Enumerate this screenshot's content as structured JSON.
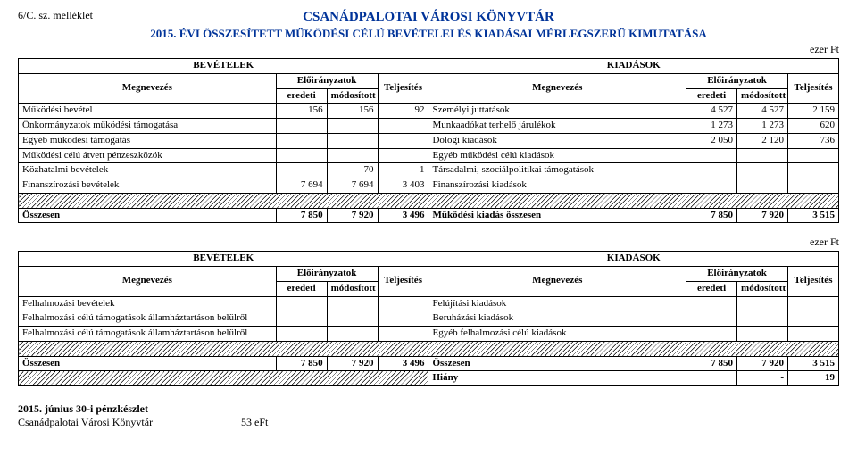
{
  "attachment_label": "6/C. sz. melléklet",
  "title_main": "CSANÁDPALOTAI VÁROSI KÖNYVTÁR",
  "title_sub": "2015. ÉVI ÖSSZESÍTETT MŰKÖDÉSI CÉLÚ BEVÉTELEI ÉS KIADÁSAI MÉRLEGSZERŰ KIMUTATÁSA",
  "unit": "ezer Ft",
  "hdr": {
    "revenues": "BEVÉTELEK",
    "expenses": "KIADÁSOK",
    "name": "Megnevezés",
    "appropriations": "Előirányzatok",
    "fulfillment": "Teljesítés",
    "original": "eredeti",
    "modified": "módosított"
  },
  "t1": {
    "rows": [
      {
        "l": "Működési bevétel",
        "a": "156",
        "b": "156",
        "c": "92",
        "r": "Személyi juttatások",
        "d": "4 527",
        "e": "4 527",
        "f": "2 159"
      },
      {
        "l": "Önkormányzatok működési támogatása",
        "a": "",
        "b": "",
        "c": "",
        "r": "Munkaadókat terhelő járulékok",
        "d": "1 273",
        "e": "1 273",
        "f": "620"
      },
      {
        "l": "Egyéb működési támogatás",
        "a": "",
        "b": "",
        "c": "",
        "r": "Dologi kiadások",
        "d": "2 050",
        "e": "2 120",
        "f": "736"
      },
      {
        "l": "Működési célú átvett pénzeszközök",
        "a": "",
        "b": "",
        "c": "",
        "r": "Egyéb működési célú kiadások",
        "d": "",
        "e": "",
        "f": ""
      },
      {
        "l": "Közhatalmi bevételek",
        "a": "",
        "b": "70",
        "c": "1",
        "r": "Társadalmi, szociálpolitikai támogatások",
        "d": "",
        "e": "",
        "f": ""
      },
      {
        "l": "Finanszírozási bevételek",
        "a": "7 694",
        "b": "7 694",
        "c": "3 403",
        "r": "Finanszírozási kiadások",
        "d": "",
        "e": "",
        "f": ""
      }
    ],
    "total": {
      "l": "Összesen",
      "a": "7 850",
      "b": "7 920",
      "c": "3 496",
      "r": "Működési kiadás összesen",
      "d": "7 850",
      "e": "7 920",
      "f": "3 515"
    }
  },
  "t2": {
    "rows": [
      {
        "l": "Felhalmozási bevételek",
        "r": "Felújítási kiadások"
      },
      {
        "l": "Felhalmozási célú támogatások államháztartáson belülről",
        "r": "Beruházási kiadások"
      },
      {
        "l": "Felhalmozási célú támogatások államháztartáson belülről",
        "r": "Egyéb felhalmozási célú kiadások"
      }
    ],
    "total": {
      "l": "Összesen",
      "a": "7 850",
      "b": "7 920",
      "c": "3 496",
      "r": "Összesen",
      "d": "7 850",
      "e": "7 920",
      "f": "3 515"
    },
    "deficit": {
      "r": "Hiány",
      "d": "",
      "e": "-",
      "f": "19"
    }
  },
  "footer": {
    "line1": "2015. június 30-i pénzkészlet",
    "line2_label": "Csanádpalotai Városi Könyvtár",
    "line2_value": "53 eFt"
  },
  "colors": {
    "title": "#003399",
    "border": "#000000",
    "background": "#ffffff"
  }
}
